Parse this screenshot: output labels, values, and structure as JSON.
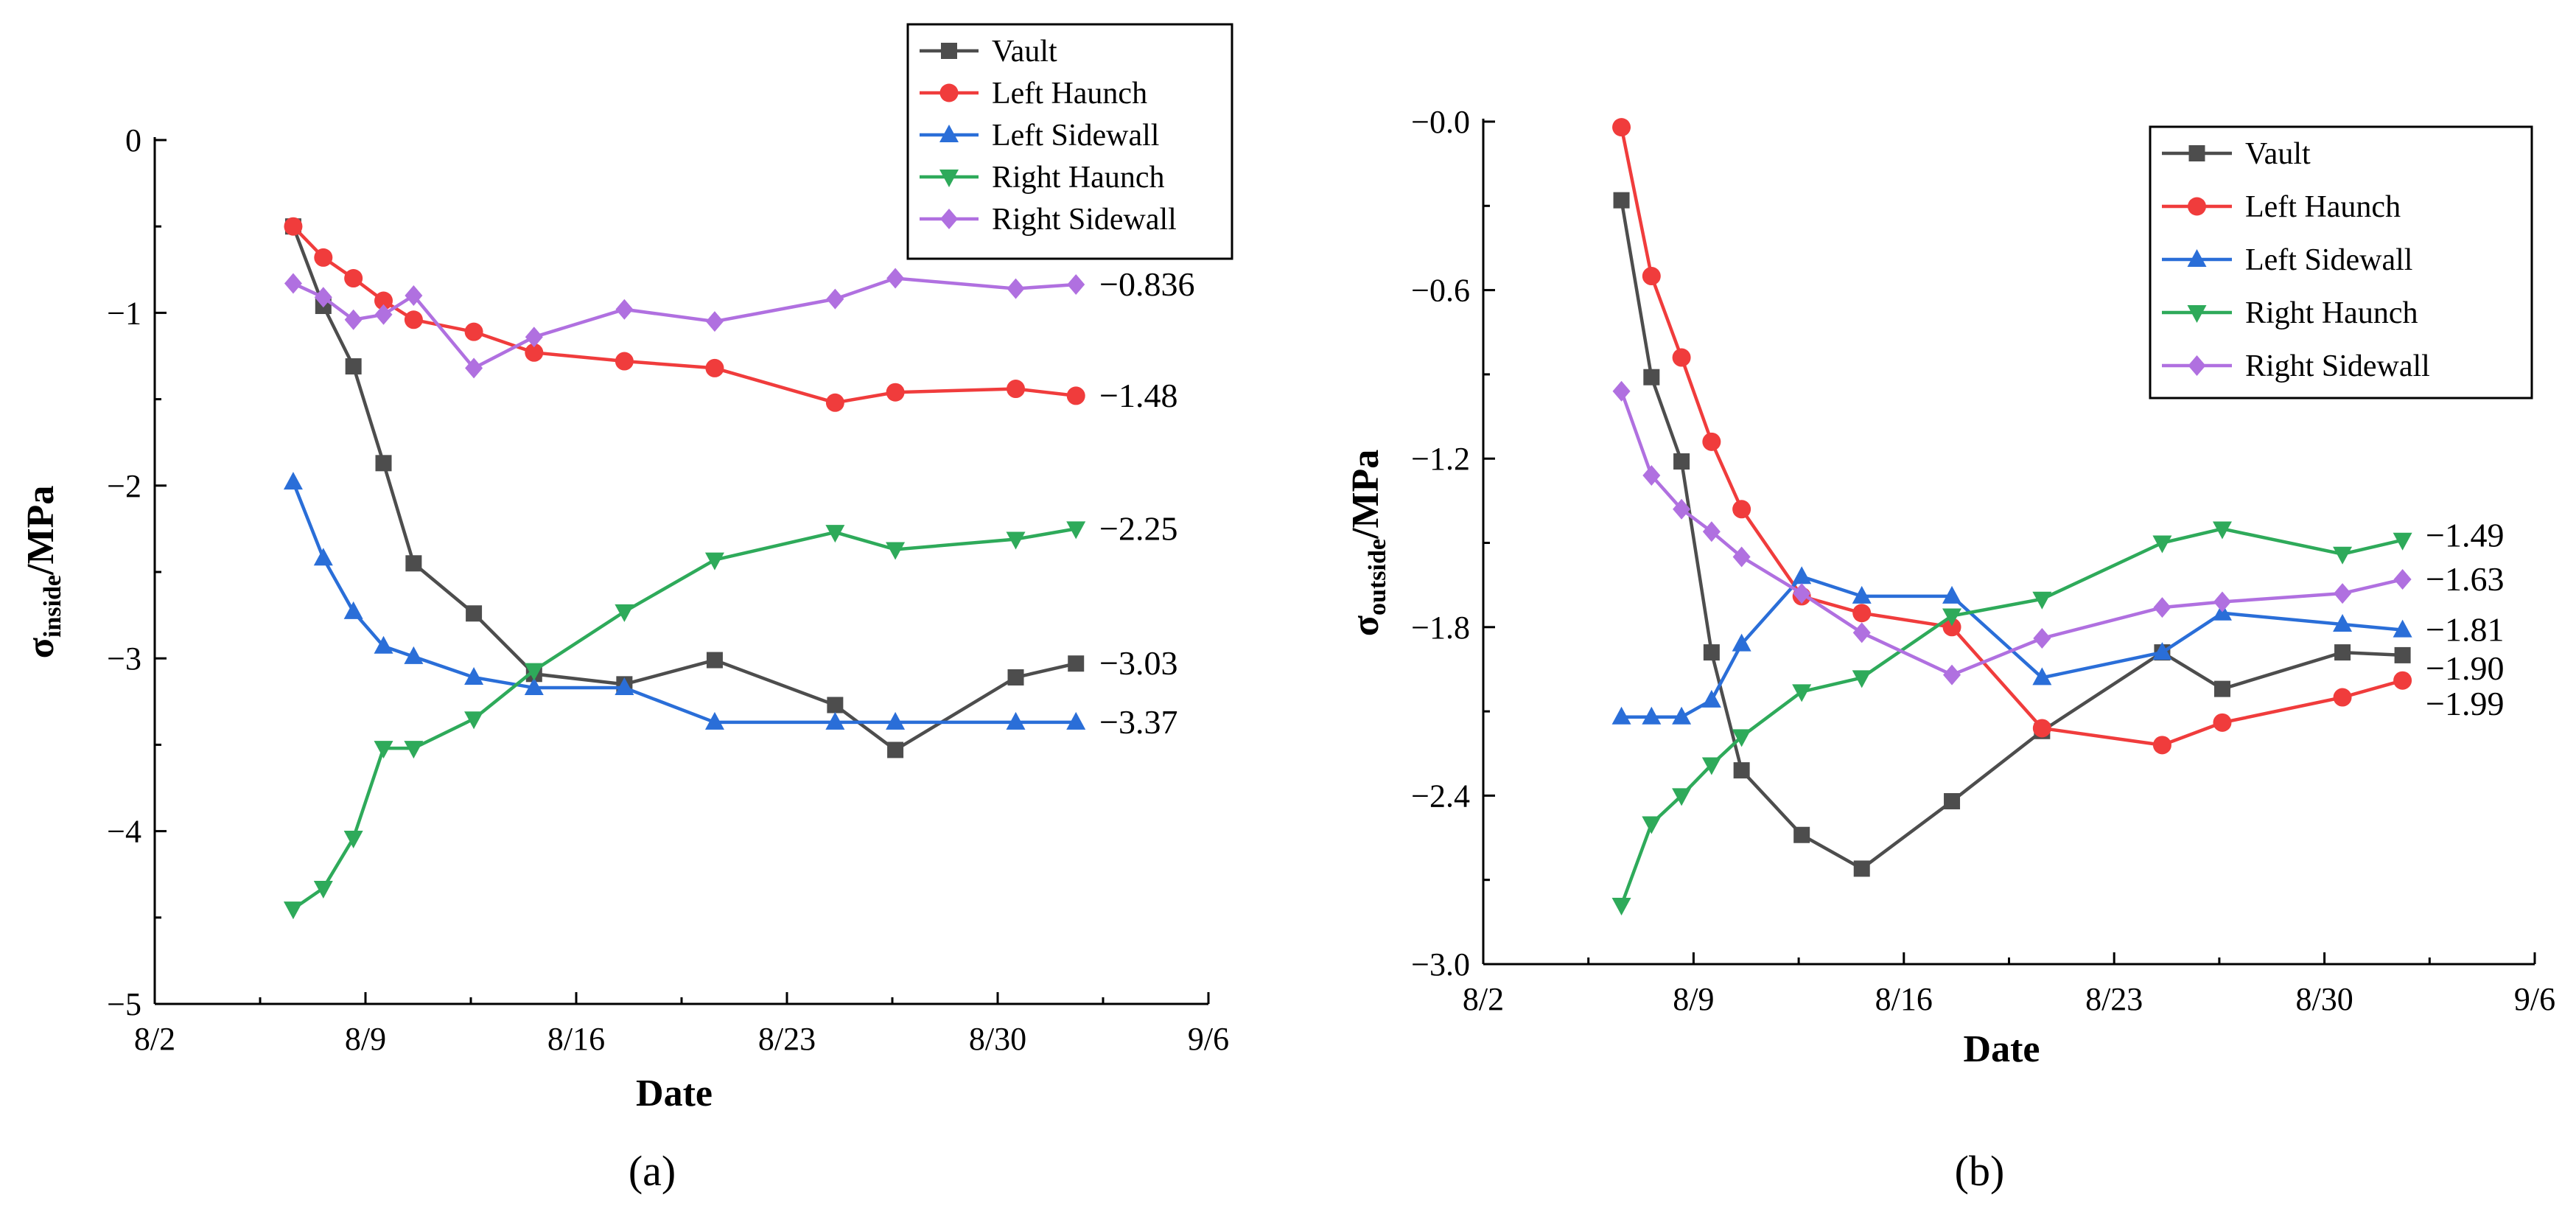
{
  "colors": {
    "Vault": "#4d4d4d",
    "Left Haunch": "#f03c3c",
    "Left Sidewall": "#2a6ed8",
    "Right Haunch": "#2eaa5a",
    "Right Sidewall": "#b070e0"
  },
  "chart_data": [
    {
      "type": "line",
      "panel_label": "(a)",
      "xlabel": "Date",
      "ylabel_main": "σ",
      "ylabel_sub": "inside",
      "ylabel_unit": "/MPa",
      "xlim": [
        0,
        35
      ],
      "ylim": [
        -5,
        0
      ],
      "x_ticks": [
        {
          "value": 0,
          "label": "8/2"
        },
        {
          "value": 7,
          "label": "8/9"
        },
        {
          "value": 14,
          "label": "8/16"
        },
        {
          "value": 21,
          "label": "8/23"
        },
        {
          "value": 28,
          "label": "8/30"
        },
        {
          "value": 35,
          "label": "9/6"
        }
      ],
      "y_ticks": [
        {
          "value": 0,
          "label": "0"
        },
        {
          "value": -1,
          "label": "−1"
        },
        {
          "value": -2,
          "label": "−2"
        },
        {
          "value": -3,
          "label": "−3"
        },
        {
          "value": -4,
          "label": "−4"
        },
        {
          "value": -5,
          "label": "−5"
        }
      ],
      "x": [
        4.6,
        5.6,
        6.6,
        7.6,
        8.6,
        10.6,
        12.6,
        15.6,
        18.6,
        22.6,
        24.6,
        28.6,
        30.6
      ],
      "series": [
        {
          "name": "Vault",
          "marker": "square",
          "values": [
            -0.5,
            -0.96,
            -1.31,
            -1.87,
            -2.45,
            -2.74,
            -3.09,
            -3.15,
            -3.01,
            -3.27,
            -3.53,
            -3.11,
            -3.03
          ]
        },
        {
          "name": "Left Haunch",
          "marker": "circle",
          "values": [
            -0.5,
            -0.68,
            -0.8,
            -0.93,
            -1.04,
            -1.11,
            -1.23,
            -1.28,
            -1.32,
            -1.52,
            -1.46,
            -1.44,
            -1.48
          ]
        },
        {
          "name": "Left Sidewall",
          "marker": "triangle-up",
          "values": [
            -1.98,
            -2.42,
            -2.73,
            -2.93,
            -2.99,
            -3.11,
            -3.17,
            -3.17,
            -3.37,
            -3.37,
            -3.37,
            -3.37,
            -3.37
          ]
        },
        {
          "name": "Right Haunch",
          "marker": "triangle-down",
          "values": [
            -4.45,
            -4.33,
            -4.04,
            -3.52,
            -3.52,
            -3.35,
            -3.07,
            -2.73,
            -2.43,
            -2.27,
            -2.37,
            -2.31,
            -2.25
          ]
        },
        {
          "name": "Right Sidewall",
          "marker": "diamond",
          "values": [
            -0.83,
            -0.91,
            -1.04,
            -1.01,
            -0.9,
            -1.32,
            -1.14,
            -0.98,
            -1.05,
            -0.92,
            -0.8,
            -0.86,
            -0.836
          ]
        }
      ],
      "end_labels": [
        {
          "value": -0.836,
          "label": "−0.836"
        },
        {
          "value": -1.48,
          "label": "−1.48"
        },
        {
          "value": -2.25,
          "label": "−2.25"
        },
        {
          "value": -3.03,
          "label": "−3.03"
        },
        {
          "value": -3.37,
          "label": "−3.37"
        }
      ],
      "legend_position": "top-right"
    },
    {
      "type": "line",
      "panel_label": "(b)",
      "xlabel": "Date",
      "ylabel_main": "σ",
      "ylabel_sub": "outside",
      "ylabel_unit": "/MPa",
      "xlim": [
        0,
        35
      ],
      "ylim": [
        -3.0,
        0.0
      ],
      "x_ticks": [
        {
          "value": 0,
          "label": "8/2"
        },
        {
          "value": 7,
          "label": "8/9"
        },
        {
          "value": 14,
          "label": "8/16"
        },
        {
          "value": 21,
          "label": "8/23"
        },
        {
          "value": 28,
          "label": "8/30"
        },
        {
          "value": 35,
          "label": "9/6"
        }
      ],
      "y_ticks": [
        {
          "value": 0.0,
          "label": "−0.0"
        },
        {
          "value": -0.6,
          "label": "−0.6"
        },
        {
          "value": -1.2,
          "label": "−1.2"
        },
        {
          "value": -1.8,
          "label": "−1.8"
        },
        {
          "value": -2.4,
          "label": "−2.4"
        },
        {
          "value": -3.0,
          "label": "−3.0"
        }
      ],
      "x": [
        4.6,
        5.6,
        6.6,
        7.6,
        8.6,
        10.6,
        12.6,
        15.6,
        18.6,
        22.6,
        24.6,
        28.6,
        30.6
      ],
      "series": [
        {
          "name": "Vault",
          "marker": "square",
          "values": [
            -0.28,
            -0.91,
            -1.21,
            -1.89,
            -2.31,
            -2.54,
            -2.66,
            -2.42,
            -2.17,
            -1.89,
            -2.02,
            -1.89,
            -1.9
          ]
        },
        {
          "name": "Left Haunch",
          "marker": "circle",
          "values": [
            -0.02,
            -0.55,
            -0.84,
            -1.14,
            -1.38,
            -1.69,
            -1.75,
            -1.8,
            -2.16,
            -2.22,
            -2.14,
            -2.05,
            -1.99
          ]
        },
        {
          "name": "Left Sidewall",
          "marker": "triangle-up",
          "values": [
            -2.12,
            -2.12,
            -2.12,
            -2.06,
            -1.86,
            -1.62,
            -1.69,
            -1.69,
            -1.98,
            -1.89,
            -1.75,
            -1.79,
            -1.81
          ]
        },
        {
          "name": "Right Haunch",
          "marker": "triangle-down",
          "values": [
            -2.79,
            -2.5,
            -2.4,
            -2.29,
            -2.19,
            -2.03,
            -1.98,
            -1.76,
            -1.7,
            -1.5,
            -1.45,
            -1.54,
            -1.49
          ]
        },
        {
          "name": "Right Sidewall",
          "marker": "diamond",
          "values": [
            -0.96,
            -1.26,
            -1.38,
            -1.46,
            -1.55,
            -1.68,
            -1.82,
            -1.97,
            -1.84,
            -1.73,
            -1.71,
            -1.68,
            -1.63
          ]
        }
      ],
      "end_labels": [
        {
          "value": -1.49,
          "label": "−1.49"
        },
        {
          "value": -1.63,
          "label": "−1.63"
        },
        {
          "value": -1.81,
          "label": "−1.81"
        },
        {
          "value": -1.9,
          "label": "−1.90"
        },
        {
          "value": -1.99,
          "label": "−1.99"
        }
      ],
      "legend_position": "top-right"
    }
  ]
}
